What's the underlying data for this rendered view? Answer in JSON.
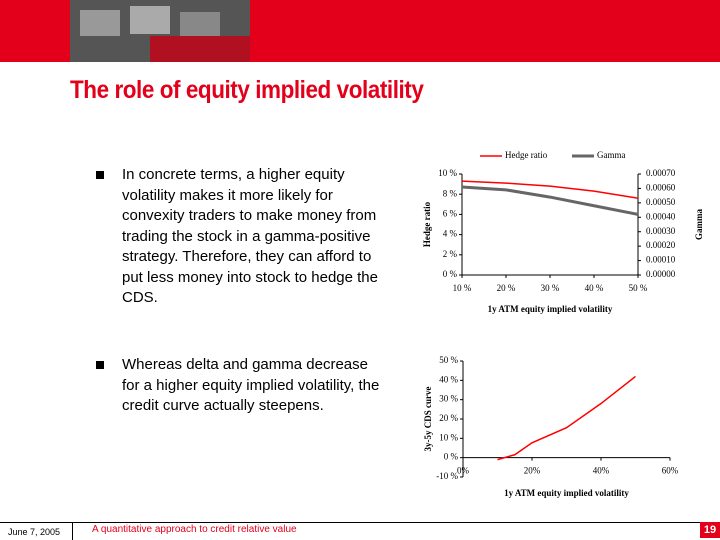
{
  "header": {
    "title": "The role of equity implied volatility"
  },
  "bullets": [
    "In concrete terms, a higher equity volatility makes it more likely for convexity traders to make money from trading the stock in a gamma-positive strategy. Therefore, they can afford to put less money into stock to hedge the CDS.",
    "Whereas delta and gamma decrease for a higher equity implied volatility, the credit curve actually steepens."
  ],
  "footer": {
    "date": "June 7, 2005",
    "subtitle": "A quantitative approach to credit relative value",
    "page": "19"
  },
  "chart_data": [
    {
      "type": "line",
      "x_label": "1y ATM equity implied volatility",
      "y_label": "Hedge ratio",
      "y2_label": "Gamma",
      "x": [
        10,
        20,
        30,
        40,
        50
      ],
      "xlim": [
        10,
        50
      ],
      "xticks": [
        {
          "value": 10,
          "label": "10 %"
        },
        {
          "value": 20,
          "label": "20 %"
        },
        {
          "value": 30,
          "label": "30 %"
        },
        {
          "value": 40,
          "label": "40 %"
        },
        {
          "value": 50,
          "label": "50 %"
        }
      ],
      "ylim": [
        0,
        10
      ],
      "yticks": [
        {
          "value": 0,
          "label": "0 %"
        },
        {
          "value": 2,
          "label": "2 %"
        },
        {
          "value": 4,
          "label": "4 %"
        },
        {
          "value": 6,
          "label": "6 %"
        },
        {
          "value": 8,
          "label": "8 %"
        },
        {
          "value": 10,
          "label": "10 %"
        }
      ],
      "y2lim": [
        0,
        0.0007
      ],
      "y2ticks": [
        {
          "value": 0,
          "label": "0.00000"
        },
        {
          "value": 0.0001,
          "label": "0.00010"
        },
        {
          "value": 0.0002,
          "label": "0.00020"
        },
        {
          "value": 0.0003,
          "label": "0.00030"
        },
        {
          "value": 0.0004,
          "label": "0.00040"
        },
        {
          "value": 0.0005,
          "label": "0.00050"
        },
        {
          "value": 0.0006,
          "label": "0.00060"
        },
        {
          "value": 0.0007,
          "label": "0.00070"
        }
      ],
      "legend": "top",
      "series": [
        {
          "name": "Hedge ratio",
          "color": "#ff0000",
          "values": [
            9.3,
            9.1,
            8.8,
            8.3,
            7.6
          ]
        },
        {
          "name": "Gamma",
          "color": "#666666",
          "axis": "y2",
          "values": [
            0.00061,
            0.00059,
            0.00054,
            0.00048,
            0.00042
          ]
        }
      ]
    },
    {
      "type": "line",
      "x_label": "1y ATM equity implied volatility",
      "y_label": "3y-5y CDS curve",
      "x": [
        10,
        15,
        20,
        30,
        40,
        50
      ],
      "xlim": [
        0,
        60
      ],
      "xticks": [
        {
          "value": 0,
          "label": "0%"
        },
        {
          "value": 20,
          "label": "20%"
        },
        {
          "value": 40,
          "label": "40%"
        },
        {
          "value": 60,
          "label": "60%"
        }
      ],
      "ylim": [
        -10,
        50
      ],
      "yticks": [
        {
          "value": -10,
          "label": "-10 %"
        },
        {
          "value": 0,
          "label": "0 %"
        },
        {
          "value": 10,
          "label": "10 %"
        },
        {
          "value": 20,
          "label": "20 %"
        },
        {
          "value": 30,
          "label": "30 %"
        },
        {
          "value": 40,
          "label": "40 %"
        },
        {
          "value": 50,
          "label": "50 %"
        }
      ],
      "series": [
        {
          "color": "#ff0000",
          "values": [
            -1,
            1.5,
            7.7,
            15.5,
            28,
            42
          ]
        }
      ]
    }
  ]
}
